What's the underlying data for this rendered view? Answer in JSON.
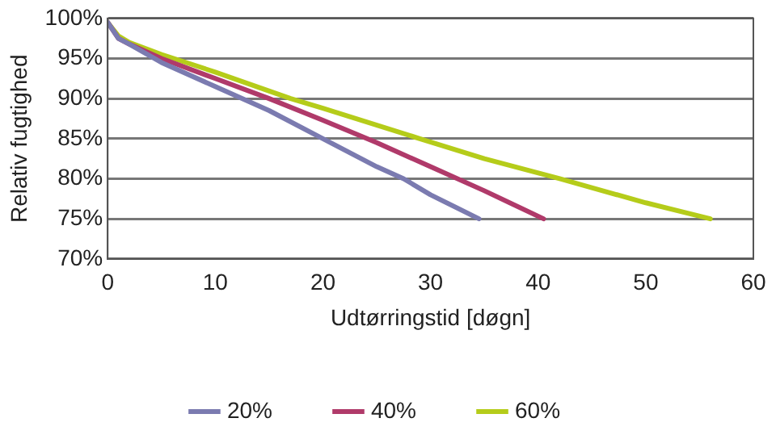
{
  "chart_data": {
    "type": "line",
    "xlabel": "Udtørringstid [døgn]",
    "ylabel": "Relativ fugtighed",
    "xlim": [
      0,
      60
    ],
    "xticks": [
      0,
      10,
      20,
      30,
      40,
      50,
      60
    ],
    "ylim": [
      70,
      100
    ],
    "yticks": [
      {
        "value": 70,
        "label": "70%"
      },
      {
        "value": 75,
        "label": "75%"
      },
      {
        "value": 80,
        "label": "80%"
      },
      {
        "value": 85,
        "label": "85%"
      },
      {
        "value": 90,
        "label": "90%"
      },
      {
        "value": 95,
        "label": "95%"
      },
      {
        "value": 100,
        "label": "100%"
      }
    ],
    "grid": "y",
    "legend": "bottom",
    "marker": "none",
    "line_style": "solid",
    "series": [
      {
        "name": "20%",
        "color": "#7b7bb0",
        "x": [
          0,
          1,
          2,
          5,
          10,
          15,
          20,
          25,
          27.5,
          30,
          34.5
        ],
        "values": [
          99.5,
          97.5,
          96.8,
          94.5,
          91.5,
          88.5,
          85,
          81.5,
          80,
          78,
          75
        ]
      },
      {
        "name": "40%",
        "color": "#b03a6a",
        "x": [
          0,
          1,
          2,
          5,
          10,
          15,
          20,
          25,
          30,
          35,
          40.5
        ],
        "values": [
          99.5,
          97.5,
          96.8,
          95,
          92.5,
          90,
          87.3,
          84.5,
          81.5,
          78.5,
          75
        ]
      },
      {
        "name": "60%",
        "color": "#b5cc1a",
        "x": [
          0,
          1,
          2,
          5,
          10,
          17,
          20,
          29,
          35,
          42,
          50,
          56
        ],
        "values": [
          99.5,
          97.8,
          97,
          95.5,
          93.3,
          90,
          88.8,
          85,
          82.5,
          80,
          77,
          75
        ]
      }
    ]
  }
}
